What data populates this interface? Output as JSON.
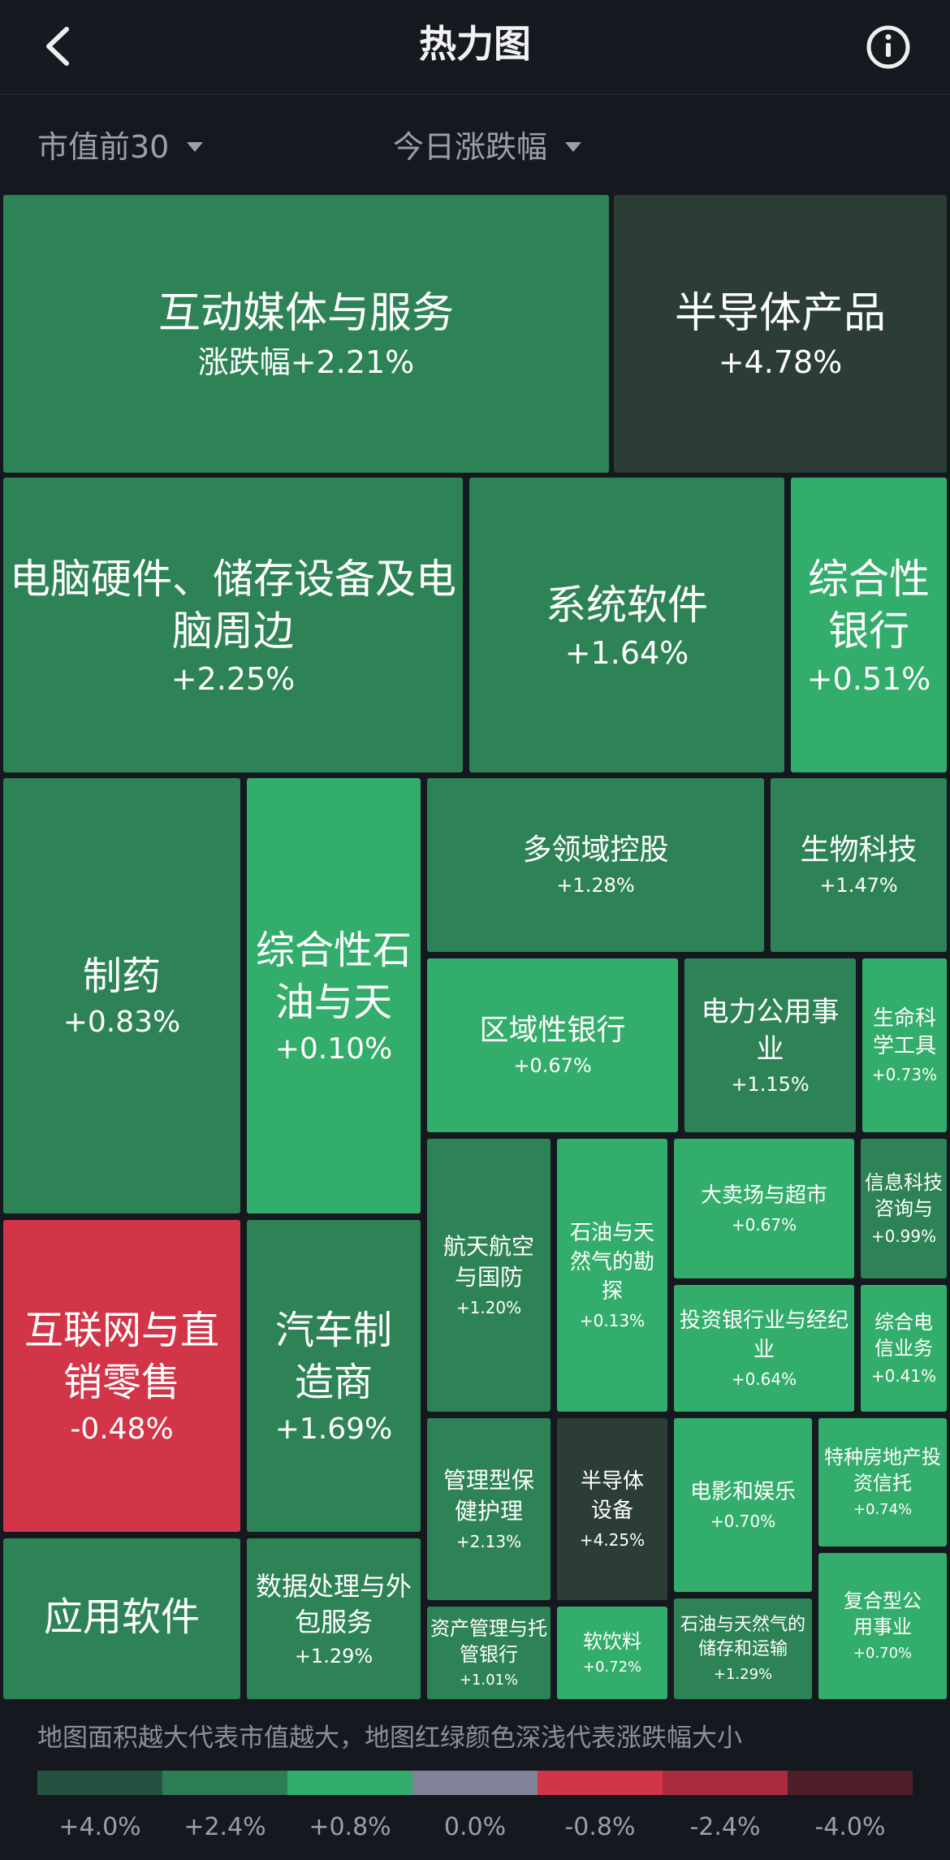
{
  "header": {
    "title": "热力图"
  },
  "filters": {
    "scope": "市值前30",
    "metric": "今日涨跌幅"
  },
  "tiles": [
    {
      "name": "互动媒体与服务",
      "value": "涨跌幅+2.21%"
    },
    {
      "name": "半导体产品",
      "value": "+4.78%"
    },
    {
      "name": "电脑硬件、储存设备及电脑周边",
      "value": "+2.25%"
    },
    {
      "name": "系统软件",
      "value": "+1.64%"
    },
    {
      "name": "综合性银行",
      "value": "+0.51%"
    },
    {
      "name": "制药",
      "value": "+0.83%"
    },
    {
      "name": "综合性石油与天",
      "value": "+0.10%"
    },
    {
      "name": "多领域控股",
      "value": "+1.28%"
    },
    {
      "name": "生物科技",
      "value": "+1.47%"
    },
    {
      "name": "区域性银行",
      "value": "+0.67%"
    },
    {
      "name": "电力公用事业",
      "value": "+1.15%"
    },
    {
      "name": "生命科学工具",
      "value": "+0.73%"
    },
    {
      "name": "互联网与直销零售",
      "value": "-0.48%"
    },
    {
      "name": "汽车制造商",
      "value": "+1.69%"
    },
    {
      "name": "航天航空与国防",
      "value": "+1.20%"
    },
    {
      "name": "石油与天然气的勘探",
      "value": "+0.13%"
    },
    {
      "name": "大卖场与超市",
      "value": "+0.67%"
    },
    {
      "name": "信息科技咨询与",
      "value": "+0.99%"
    },
    {
      "name": "投资银行业与经纪业",
      "value": "+0.64%"
    },
    {
      "name": "综合电信业务",
      "value": "+0.41%"
    },
    {
      "name": "管理型保健护理",
      "value": "+2.13%"
    },
    {
      "name": "半导体设备",
      "value": "+4.25%"
    },
    {
      "name": "电影和娱乐",
      "value": "+0.70%"
    },
    {
      "name": "特种房地产投资信托",
      "value": "+0.74%"
    },
    {
      "name": "应用软件",
      "value": ""
    },
    {
      "name": "数据处理与外包服务",
      "value": "+1.29%"
    },
    {
      "name": "资产管理与托管银行",
      "value": "+1.01%"
    },
    {
      "name": "软饮料",
      "value": "+0.72%"
    },
    {
      "name": "石油与天然气的储存和运输",
      "value": "+1.29%"
    },
    {
      "name": "复合型公用事业",
      "value": "+0.70%"
    }
  ],
  "footer": {
    "note": "地图面积越大代表市值越大，地图红绿颜色深浅代表涨跌幅大小",
    "legend": [
      {
        "label": "+4.0%",
        "color": "#255240"
      },
      {
        "label": "+2.4%",
        "color": "#2c7d54"
      },
      {
        "label": "+0.8%",
        "color": "#33ad6b"
      },
      {
        "label": "0.0%",
        "color": "#808298"
      },
      {
        "label": "-0.8%",
        "color": "#d23448"
      },
      {
        "label": "-2.4%",
        "color": "#a82c3c"
      },
      {
        "label": "-4.0%",
        "color": "#4e1e28"
      }
    ]
  }
}
